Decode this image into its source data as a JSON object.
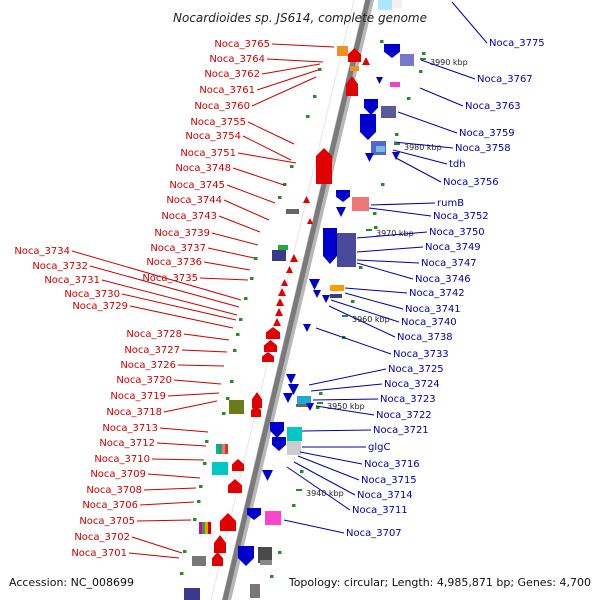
{
  "title": "Nocardioides sp. JS614, complete genome",
  "footer": {
    "accession": "Accession: NC_008699",
    "topology": "Topology: circular; Length: 4,985,871 bp; Genes: 4,700"
  },
  "scale_labels": [
    "3990 kbp",
    "3980 kbp",
    "3970 kbp",
    "3960 kbp",
    "3950 kbp",
    "3940 kbp"
  ],
  "left_labels": [
    "Noca_3765",
    "Noca_3764",
    "Noca_3762",
    "Noca_3761",
    "Noca_3760",
    "Noca_3755",
    "Noca_3754",
    "Noca_3751",
    "Noca_3748",
    "Noca_3745",
    "Noca_3744",
    "Noca_3743",
    "Noca_3739",
    "Noca_3737",
    "Noca_3736",
    "Noca_3735",
    "Noca_3734",
    "Noca_3732",
    "Noca_3731",
    "Noca_3730",
    "Noca_3729",
    "Noca_3728",
    "Noca_3727",
    "Noca_3726",
    "Noca_3720",
    "Noca_3719",
    "Noca_3718",
    "Noca_3713",
    "Noca_3712",
    "Noca_3710",
    "Noca_3709",
    "Noca_3708",
    "Noca_3706",
    "Noca_3705",
    "Noca_3702",
    "Noca_3701"
  ],
  "right_labels": [
    "Noca_3775",
    "Noca_3767",
    "Noca_3763",
    "Noca_3759",
    "Noca_3758",
    "tdh",
    "Noca_3756",
    "rumB",
    "Noca_3752",
    "Noca_3750",
    "Noca_3749",
    "Noca_3747",
    "Noca_3746",
    "Noca_3742",
    "Noca_3741",
    "Noca_3740",
    "Noca_3738",
    "Noca_3733",
    "Noca_3725",
    "Noca_3724",
    "Noca_3723",
    "Noca_3722",
    "Noca_3721",
    "glgC",
    "Noca_3716",
    "Noca_3715",
    "Noca_3714",
    "Noca_3711",
    "Noca_3707"
  ],
  "colors": {
    "forward": "#e00000",
    "reverse": "#0000cc",
    "left_label": "#cc0000",
    "right_label": "#0000aa",
    "backbone": "#7a7a7a",
    "tick": "#2a8a2a"
  }
}
